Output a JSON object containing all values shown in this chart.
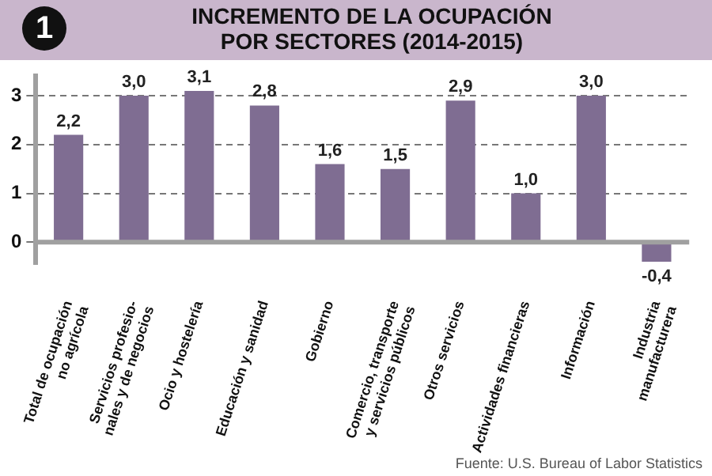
{
  "chart_data": {
    "type": "bar",
    "title": "INCREMENTO DE LA OCUPACIÓN\nPOR SECTORES (2014-2015)",
    "categories": [
      "Total de ocupación\nno agrícola",
      "Servicios profesio-\nnales y de negocios",
      "Ocio y hostelería",
      "Educación y sanidad",
      "Gobierno",
      "Comercio, transporte\ny servicios públicos",
      "Otros servicios",
      "Actividades financieras",
      "Información",
      "Industria\nmanufacturera"
    ],
    "values": [
      2.2,
      3.0,
      3.1,
      2.8,
      1.6,
      1.5,
      2.9,
      1.0,
      3.0,
      -0.4
    ],
    "value_labels": [
      "2,2",
      "3,0",
      "3,1",
      "2,8",
      "1,6",
      "1,5",
      "2,9",
      "1,0",
      "3,0",
      "-0,4"
    ],
    "color": "#7f6d92",
    "ylim": [
      -0.45,
      3.4
    ],
    "yticks": [
      0,
      1,
      2,
      3
    ],
    "grid": "y",
    "annotations": [
      "1",
      "Fuente: U.S. Bureau of Labor Statistics"
    ]
  }
}
